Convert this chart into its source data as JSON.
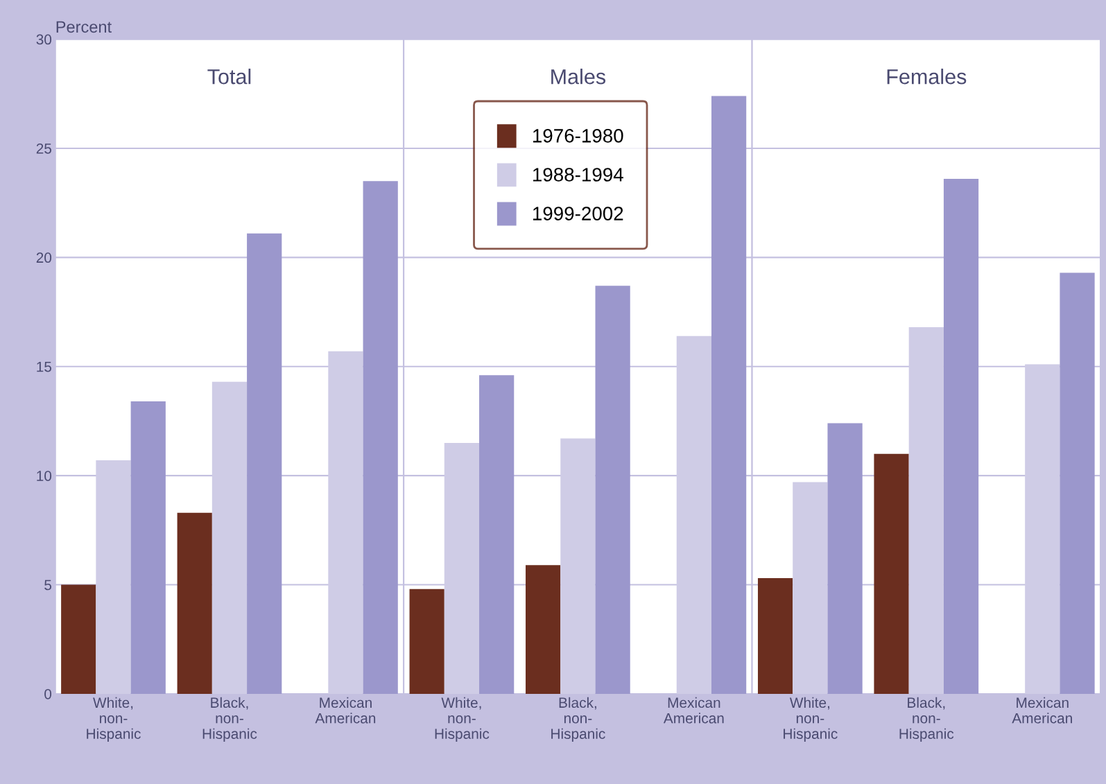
{
  "chart_data": [
    {
      "type": "bar",
      "title": "Total",
      "ylabel": "Percent",
      "categories": [
        "White,\nnon-\nHispanic",
        "Black,\nnon-\nHispanic",
        "Mexican\nAmerican"
      ],
      "series": [
        {
          "color": "#6b2e1f",
          "values": [
            5.0,
            8.3,
            null
          ]
        },
        {
          "color": "#cfcce6",
          "values": [
            10.7,
            14.3,
            15.7
          ]
        },
        {
          "color": "#9b97cc",
          "values": [
            13.4,
            21.1,
            23.5
          ]
        }
      ],
      "ylim": [
        0,
        30
      ],
      "yticks": [
        0,
        5,
        10,
        15,
        20,
        25,
        30
      ],
      "grid": "y"
    },
    {
      "type": "bar",
      "title": "Males",
      "categories": [
        "White,\nnon-\nHispanic",
        "Black,\nnon-\nHispanic",
        "Mexican\nAmerican"
      ],
      "series": [
        {
          "name": "1976-1980",
          "color": "#6b2e1f",
          "values": [
            4.8,
            5.9,
            null
          ]
        },
        {
          "name": "1988-1994",
          "color": "#cfcce6",
          "values": [
            11.5,
            11.7,
            16.4
          ]
        },
        {
          "name": "1999-2002",
          "color": "#9b97cc",
          "values": [
            14.6,
            18.7,
            27.4
          ]
        }
      ],
      "ylim": [
        0,
        30
      ],
      "yticks": [
        0,
        5,
        10,
        15,
        20,
        25,
        30
      ],
      "grid": "y",
      "legend": "top",
      "tick_labels": "x"
    },
    {
      "type": "bar",
      "title": "Females",
      "categories": [
        "White,\nnon-\nHispanic",
        "Black,\nnon-\nHispanic",
        "Mexican\nAmerican"
      ],
      "series": [
        {
          "color": "#6b2e1f",
          "values": [
            5.3,
            11.0,
            null
          ]
        },
        {
          "color": "#cfcce6",
          "values": [
            9.7,
            16.8,
            15.1
          ]
        },
        {
          "color": "#9b97cc",
          "values": [
            12.4,
            23.6,
            19.3
          ]
        }
      ],
      "ylim": [
        0,
        30
      ],
      "yticks": [
        0,
        5,
        10,
        15,
        20,
        25,
        30
      ],
      "grid": "y",
      "tick_labels": "x"
    }
  ]
}
